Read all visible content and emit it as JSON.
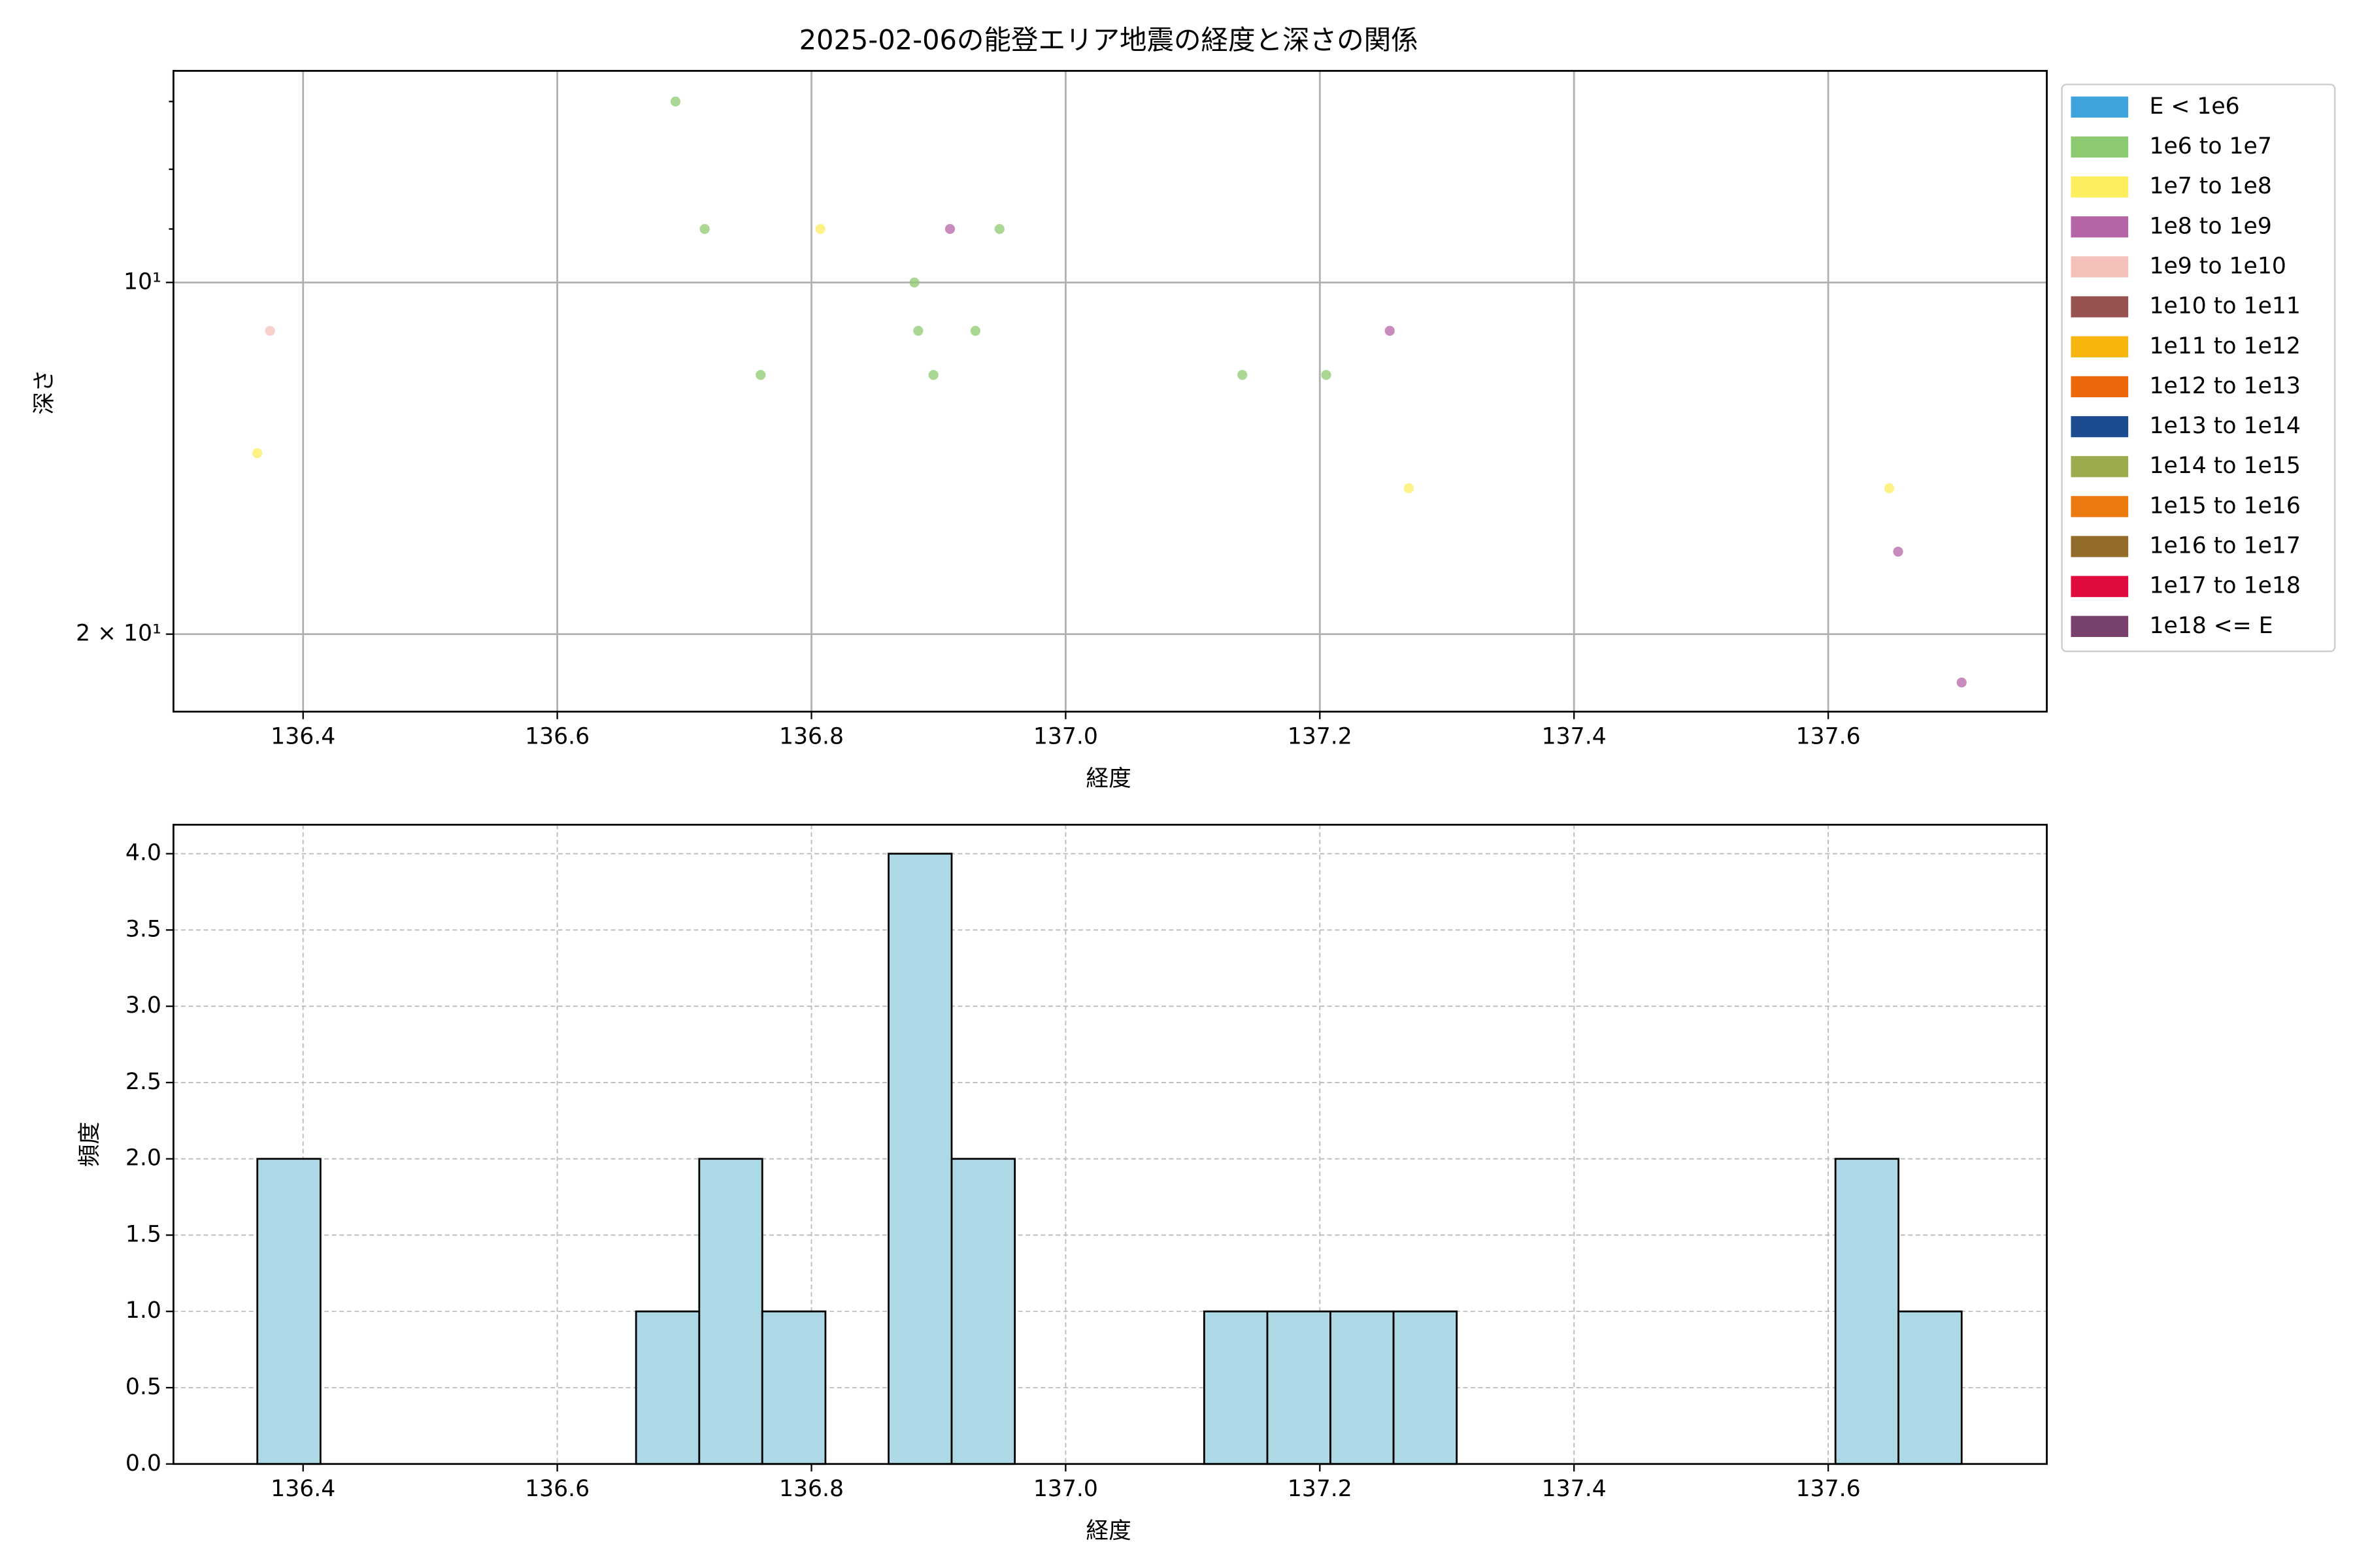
{
  "chart_data": [
    {
      "type": "scatter",
      "title": "2025-02-06の能登エリア地震の経度と深さの関係",
      "x_label": "経度",
      "y_label": "深さ",
      "xlim": [
        136.298,
        137.772
      ],
      "xticks": [
        136.4,
        136.6,
        136.8,
        {
          "value": 137.0,
          "label": "137.0"
        },
        137.2,
        137.4,
        137.6
      ],
      "ylim": [
        6.59,
        23.3
      ],
      "y_log": true,
      "y_inverted": true,
      "yticks": [
        {
          "value": 10,
          "label": "10¹"
        },
        {
          "value": 20,
          "label": "2 × 10¹"
        }
      ],
      "yminorticks": [
        7,
        8,
        9
      ],
      "grid": true,
      "legend": "outside-right",
      "series": [
        {
          "name": "E < 1e6",
          "color": "#3fa3dc",
          "x": [],
          "values": []
        },
        {
          "name": "1e6 to 1e7",
          "color": "#8dc970",
          "x": [
            136.693,
            136.716,
            136.948,
            136.881,
            136.884,
            136.929,
            136.76,
            136.896,
            137.139,
            137.205
          ],
          "values": [
            7.0,
            9.0,
            9.0,
            10.0,
            11.0,
            11.0,
            12.0,
            12.0,
            12.0,
            12.0
          ]
        },
        {
          "name": "1e7 to 1e8",
          "color": "#fdee5e",
          "x": [
            136.807,
            136.364,
            137.27,
            137.648
          ],
          "values": [
            9.0,
            14.0,
            15.0,
            15.0
          ]
        },
        {
          "name": "1e8 to 1e9",
          "color": "#b565a5",
          "x": [
            136.909,
            137.255,
            137.655,
            137.705
          ],
          "values": [
            9.0,
            11.0,
            17.0,
            22.0
          ]
        },
        {
          "name": "1e9 to 1e10",
          "color": "#f4c1bb",
          "x": [
            136.374
          ],
          "values": [
            11.0
          ]
        },
        {
          "name": "1e10 to 1e11",
          "color": "#985350",
          "x": [],
          "values": []
        },
        {
          "name": "1e11 to 1e12",
          "color": "#f8b50e",
          "x": [],
          "values": []
        },
        {
          "name": "1e12 to 1e13",
          "color": "#ed6609",
          "x": [],
          "values": []
        },
        {
          "name": "1e13 to 1e14",
          "color": "#1c4b90",
          "x": [],
          "values": []
        },
        {
          "name": "1e14 to 1e15",
          "color": "#9cab4d",
          "x": [],
          "values": []
        },
        {
          "name": "1e15 to 1e16",
          "color": "#ed7a0f",
          "x": [],
          "values": []
        },
        {
          "name": "1e16 to 1e17",
          "color": "#946c2a",
          "x": [],
          "values": []
        },
        {
          "name": "1e17 to 1e18",
          "color": "#df0a3e",
          "x": [],
          "values": []
        },
        {
          "name": "1e18 <= E",
          "color": "#77406d",
          "x": [],
          "values": []
        }
      ]
    },
    {
      "type": "histogram",
      "x_label": "経度",
      "y_label": "頻度",
      "color": "#add8e6",
      "edgecolor": "#000000",
      "bins": [
        136.364,
        136.4137,
        136.4633,
        136.513,
        136.5627,
        136.6123,
        136.662,
        136.7117,
        136.7613,
        136.811,
        136.8607,
        136.9103,
        136.96,
        137.0097,
        137.0593,
        137.109,
        137.1587,
        137.2083,
        137.258,
        137.3077,
        137.3573,
        137.407,
        137.4567,
        137.5063,
        137.556,
        137.6057,
        137.6553,
        137.705
      ],
      "values": [
        2,
        0,
        0,
        0,
        0,
        0,
        1,
        2,
        1,
        0,
        4,
        2,
        0,
        0,
        0,
        1,
        1,
        1,
        1,
        0,
        0,
        0,
        0,
        0,
        0,
        2,
        1
      ],
      "xlim": [
        136.298,
        137.772
      ],
      "xticks": [
        136.4,
        136.6,
        136.8,
        {
          "value": 137.0,
          "label": "137.0"
        },
        137.2,
        137.4,
        137.6
      ],
      "ylim": [
        0,
        4.19
      ],
      "yticks": [
        {
          "value": 0,
          "label": "0.0"
        },
        {
          "value": 0.5,
          "label": "0.5"
        },
        {
          "value": 1,
          "label": "1.0"
        },
        {
          "value": 1.5,
          "label": "1.5"
        },
        {
          "value": 2,
          "label": "2.0"
        },
        {
          "value": 2.5,
          "label": "2.5"
        },
        {
          "value": 3,
          "label": "3.0"
        },
        {
          "value": 3.5,
          "label": "3.5"
        },
        {
          "value": 4,
          "label": "4.0"
        }
      ],
      "grid": true
    }
  ]
}
